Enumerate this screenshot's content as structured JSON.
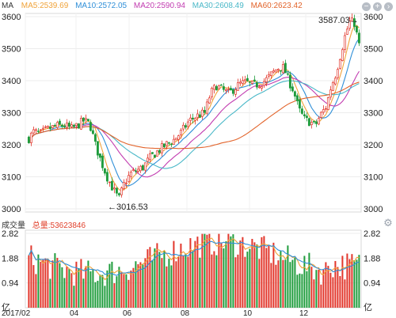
{
  "legend": {
    "label": "MA",
    "items": [
      {
        "text": "MA5:2539.69",
        "color": "#f0a33a"
      },
      {
        "text": "MA10:2572.05",
        "color": "#2f8fd8"
      },
      {
        "text": "MA20:2590.94",
        "color": "#c23cb0"
      },
      {
        "text": "MA30:2608.49",
        "color": "#4ab8c8"
      },
      {
        "text": "MA60:2623.42",
        "color": "#e2632a"
      }
    ]
  },
  "controls": {
    "zoom_out": "−",
    "zoom_in": "+",
    "next": "›"
  },
  "volume_header": {
    "label": "成交量",
    "total": "总量:53623846"
  },
  "settings_icon": "gear-icon",
  "chart_data": [
    {
      "type": "candlestick",
      "price_ticks": [
        "3600",
        "3500",
        "3400",
        "3300",
        "3200",
        "3100",
        "3000"
      ],
      "ylim": [
        3000,
        3600
      ],
      "x_ticks": [
        "2017/02",
        "04",
        "06",
        "08",
        "10",
        "12"
      ],
      "annotations": [
        {
          "text": "3587.03→",
          "value": 3587.03
        },
        {
          "text": "←3016.53",
          "value": 3016.53
        }
      ],
      "ohlc": [],
      "colors": {
        "up": "#e2362b",
        "down": "#1f9c3c",
        "grid": "#e6e6e6"
      }
    },
    {
      "type": "bar",
      "title": "成交量",
      "total": "53623846",
      "y_ticks": [
        "2.82",
        "1.88",
        "0.94",
        "亿"
      ],
      "ylim": [
        0,
        2.82
      ],
      "x_ticks": [
        "2017/02",
        "04",
        "06",
        "08",
        "10",
        "12"
      ]
    }
  ]
}
